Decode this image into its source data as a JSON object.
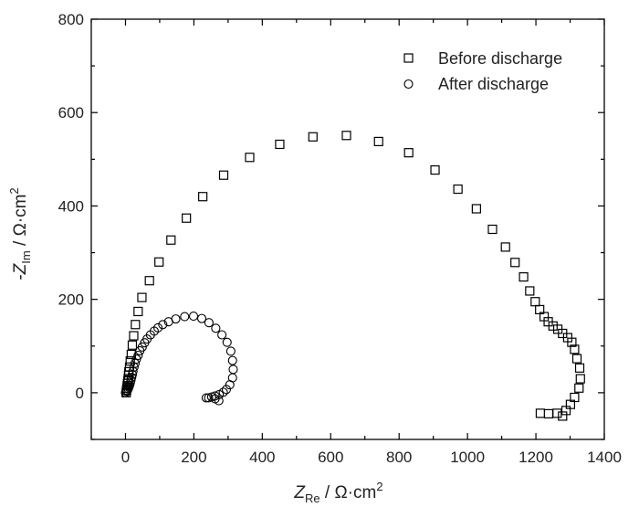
{
  "chart_data": {
    "type": "scatter",
    "title": "",
    "xlabel": {
      "symbol": "Z",
      "subscript": "Re",
      "rest": " / Ω·cm",
      "sup": "2"
    },
    "ylabel": {
      "prefix": "-",
      "symbol": "Z",
      "subscript": "Im",
      "rest": " / Ω·cm",
      "sup": "2"
    },
    "xlim": [
      -100,
      1400
    ],
    "ylim": [
      -100,
      800
    ],
    "xticks": [
      0,
      200,
      400,
      600,
      800,
      1000,
      1200,
      1400
    ],
    "yticks": [
      0,
      200,
      400,
      600,
      800
    ],
    "grid": false,
    "legend_position": "top-right",
    "series": [
      {
        "name": "Before discharge",
        "marker": "square",
        "points": [
          [
            2,
            0
          ],
          [
            3,
            5
          ],
          [
            4,
            10
          ],
          [
            5,
            15
          ],
          [
            6,
            20
          ],
          [
            7,
            25
          ],
          [
            8,
            30
          ],
          [
            9,
            38
          ],
          [
            10,
            45
          ],
          [
            12,
            55
          ],
          [
            14,
            68
          ],
          [
            17,
            82
          ],
          [
            20,
            102
          ],
          [
            24,
            122
          ],
          [
            29,
            146
          ],
          [
            37,
            174
          ],
          [
            48,
            204
          ],
          [
            70,
            240
          ],
          [
            98,
            280
          ],
          [
            133,
            327
          ],
          [
            178,
            374
          ],
          [
            226,
            420
          ],
          [
            287,
            466
          ],
          [
            363,
            504
          ],
          [
            451,
            532
          ],
          [
            548,
            548
          ],
          [
            646,
            551
          ],
          [
            740,
            538
          ],
          [
            828,
            514
          ],
          [
            905,
            477
          ],
          [
            972,
            436
          ],
          [
            1026,
            394
          ],
          [
            1073,
            350
          ],
          [
            1111,
            312
          ],
          [
            1139,
            279
          ],
          [
            1164,
            248
          ],
          [
            1182,
            218
          ],
          [
            1198,
            195
          ],
          [
            1211,
            178
          ],
          [
            1224,
            163
          ],
          [
            1236,
            152
          ],
          [
            1250,
            143
          ],
          [
            1264,
            136
          ],
          [
            1278,
            127
          ],
          [
            1293,
            118
          ],
          [
            1305,
            108
          ],
          [
            1313,
            93
          ],
          [
            1320,
            73
          ],
          [
            1328,
            53
          ],
          [
            1330,
            30
          ],
          [
            1326,
            10
          ],
          [
            1313,
            -10
          ],
          [
            1301,
            -25
          ],
          [
            1288,
            -38
          ],
          [
            1278,
            -50
          ],
          [
            1262,
            -44
          ],
          [
            1237,
            -45
          ],
          [
            1213,
            -44
          ]
        ]
      },
      {
        "name": "After discharge",
        "marker": "circle",
        "points": [
          [
            0,
            0
          ],
          [
            3,
            3
          ],
          [
            5,
            5
          ],
          [
            8,
            8
          ],
          [
            10,
            12
          ],
          [
            12,
            16
          ],
          [
            14,
            21
          ],
          [
            16,
            27
          ],
          [
            18,
            33
          ],
          [
            20,
            39
          ],
          [
            22,
            46
          ],
          [
            25,
            55
          ],
          [
            28,
            63
          ],
          [
            32,
            72
          ],
          [
            37,
            80
          ],
          [
            42,
            90
          ],
          [
            49,
            98
          ],
          [
            56,
            107
          ],
          [
            63,
            115
          ],
          [
            73,
            124
          ],
          [
            84,
            132
          ],
          [
            95,
            139
          ],
          [
            109,
            146
          ],
          [
            126,
            152
          ],
          [
            147,
            158
          ],
          [
            173,
            163
          ],
          [
            199,
            164
          ],
          [
            223,
            159
          ],
          [
            244,
            150
          ],
          [
            264,
            138
          ],
          [
            282,
            124
          ],
          [
            297,
            108
          ],
          [
            308,
            89
          ],
          [
            313,
            69
          ],
          [
            315,
            50
          ],
          [
            313,
            32
          ],
          [
            305,
            17
          ],
          [
            295,
            7
          ],
          [
            286,
            1
          ],
          [
            274,
            -4
          ],
          [
            262,
            -7
          ],
          [
            252,
            -9
          ],
          [
            243,
            -11
          ],
          [
            236,
            -11
          ],
          [
            262,
            -13
          ],
          [
            273,
            -17
          ]
        ]
      }
    ]
  }
}
